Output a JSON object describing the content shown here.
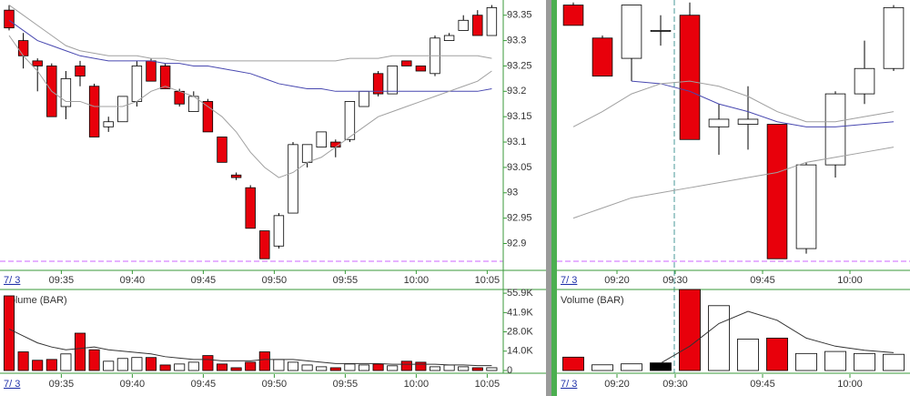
{
  "chart_data": [
    {
      "type": "candlestick",
      "date_label": "7/ 3",
      "up_color": "#ffffff",
      "down_color": "#e8000b",
      "x": [
        "09:31",
        "09:32",
        "09:33",
        "09:34",
        "09:35",
        "09:36",
        "09:37",
        "09:38",
        "09:39",
        "09:40",
        "09:41",
        "09:42",
        "09:43",
        "09:44",
        "09:45",
        "09:46",
        "09:47",
        "09:48",
        "09:49",
        "09:50",
        "09:51",
        "09:52",
        "09:53",
        "09:54",
        "09:55",
        "09:56",
        "09:57",
        "09:58",
        "09:59",
        "10:00",
        "10:01",
        "10:02",
        "10:03",
        "10:04",
        "10:05"
      ],
      "xticks": [
        "09:35",
        "09:40",
        "09:45",
        "09:50",
        "09:55",
        "10:00",
        "10:05"
      ],
      "open": [
        93.36,
        93.3,
        93.26,
        93.25,
        93.17,
        93.25,
        93.21,
        93.13,
        93.14,
        93.18,
        93.26,
        93.25,
        93.2,
        93.16,
        93.18,
        93.11,
        93.035,
        93.01,
        92.925,
        92.895,
        92.96,
        93.06,
        93.09,
        93.1,
        93.105,
        93.17,
        93.235,
        93.195,
        93.26,
        93.25,
        93.235,
        93.3,
        93.32,
        93.35,
        93.31
      ],
      "high": [
        93.37,
        93.315,
        93.265,
        93.255,
        93.24,
        93.26,
        93.215,
        93.15,
        93.19,
        93.26,
        93.265,
        93.255,
        93.205,
        93.2,
        93.185,
        93.11,
        93.04,
        93.015,
        92.925,
        92.96,
        93.1,
        93.095,
        93.12,
        93.105,
        93.18,
        93.2,
        93.24,
        93.25,
        93.26,
        93.25,
        93.31,
        93.315,
        93.35,
        93.36,
        93.37
      ],
      "low": [
        93.32,
        93.245,
        93.2,
        93.15,
        93.145,
        93.21,
        93.11,
        93.12,
        93.14,
        93.17,
        93.22,
        93.205,
        93.17,
        93.16,
        93.12,
        93.06,
        93.025,
        92.93,
        92.87,
        92.89,
        92.96,
        93.05,
        93.09,
        93.07,
        93.1,
        93.17,
        93.19,
        93.195,
        93.25,
        93.24,
        93.23,
        93.3,
        93.32,
        93.31,
        93.31
      ],
      "close": [
        93.325,
        93.27,
        93.25,
        93.15,
        93.225,
        93.23,
        93.11,
        93.14,
        93.19,
        93.25,
        93.22,
        93.205,
        93.175,
        93.19,
        93.12,
        93.06,
        93.03,
        92.93,
        92.87,
        92.955,
        93.095,
        93.095,
        93.12,
        93.09,
        93.18,
        93.2,
        93.195,
        93.25,
        93.25,
        93.24,
        93.305,
        93.31,
        93.34,
        93.31,
        93.365
      ],
      "lines": [
        {
          "color": "#4848b0",
          "values": [
            93.34,
            93.32,
            93.3,
            93.29,
            93.28,
            93.27,
            93.265,
            93.26,
            93.26,
            93.26,
            93.26,
            93.255,
            93.255,
            93.25,
            93.25,
            93.245,
            93.24,
            93.235,
            93.225,
            93.215,
            93.21,
            93.205,
            93.205,
            93.2,
            93.2,
            93.2,
            93.2,
            93.2,
            93.2,
            93.2,
            93.2,
            93.2,
            93.2,
            93.2,
            93.205
          ]
        },
        {
          "color": "#a0a0a0",
          "values": [
            93.37,
            93.35,
            93.33,
            93.31,
            93.29,
            93.28,
            93.275,
            93.27,
            93.27,
            93.27,
            93.265,
            93.265,
            93.26,
            93.26,
            93.26,
            93.26,
            93.26,
            93.26,
            93.26,
            93.26,
            93.26,
            93.26,
            93.26,
            93.26,
            93.265,
            93.265,
            93.265,
            93.27,
            93.27,
            93.27,
            93.27,
            93.27,
            93.27,
            93.27,
            93.265
          ]
        },
        {
          "color": "#a0a0a0",
          "values": [
            93.31,
            93.27,
            93.24,
            93.2,
            93.18,
            93.18,
            93.17,
            93.17,
            93.17,
            93.18,
            93.2,
            93.21,
            93.2,
            93.19,
            93.17,
            93.15,
            93.12,
            93.08,
            93.05,
            93.03,
            93.04,
            93.06,
            93.07,
            93.09,
            93.11,
            93.13,
            93.15,
            93.16,
            93.17,
            93.18,
            93.19,
            93.2,
            93.21,
            93.22,
            93.24
          ]
        }
      ],
      "ylim": [
        92.865,
        93.38
      ],
      "yticks": [
        92.9,
        92.95,
        93,
        93.05,
        93.1,
        93.15,
        93.2,
        93.25,
        93.3,
        93.35
      ]
    },
    {
      "type": "volume",
      "label": "Volume (BAR)",
      "date_label": "7/ 3",
      "xticks": [
        "09:35",
        "09:40",
        "09:45",
        "09:50",
        "09:55",
        "10:00",
        "10:05"
      ],
      "values": [
        54000,
        13500,
        7400,
        8000,
        12000,
        27000,
        15000,
        6700,
        8700,
        9400,
        9400,
        4000,
        4700,
        6000,
        10800,
        4700,
        2000,
        6000,
        13500,
        8000,
        6000,
        4000,
        2700,
        2000,
        4700,
        4000,
        4700,
        3400,
        6700,
        6000,
        2700,
        4000,
        2700,
        2000,
        2000
      ],
      "colors": [
        "#e8000b",
        "#e8000b",
        "#e8000b",
        "#e8000b",
        "#ffffff",
        "#e8000b",
        "#e8000b",
        "#ffffff",
        "#ffffff",
        "#ffffff",
        "#e8000b",
        "#e8000b",
        "#ffffff",
        "#ffffff",
        "#e8000b",
        "#e8000b",
        "#e8000b",
        "#e8000b",
        "#e8000b",
        "#ffffff",
        "#ffffff",
        "#ffffff",
        "#ffffff",
        "#e8000b",
        "#ffffff",
        "#ffffff",
        "#e8000b",
        "#ffffff",
        "#e8000b",
        "#e8000b",
        "#ffffff",
        "#ffffff",
        "#ffffff",
        "#e8000b",
        "#ffffff"
      ],
      "lines": [
        {
          "color": "#333333",
          "values": [
            30000,
            25000,
            20000,
            17000,
            15000,
            16000,
            17000,
            15000,
            14000,
            13000,
            12000,
            10000,
            9000,
            8000,
            8000,
            7000,
            7000,
            7000,
            8000,
            8000,
            8000,
            7000,
            6000,
            5000,
            5000,
            5000,
            5000,
            4500,
            4500,
            4500,
            4500,
            4000,
            4000,
            3500,
            3500
          ]
        }
      ],
      "ylim": [
        0,
        58600
      ],
      "yticks": [
        0,
        {
          "value": 14000,
          "label": "14.0K"
        },
        {
          "value": 28000,
          "label": "28.0K"
        },
        {
          "value": 41900,
          "label": "41.9K"
        },
        {
          "value": 55900,
          "label": "55.9K"
        }
      ]
    },
    {
      "type": "candlestick",
      "date_label": "7/ 3",
      "up_color": "#ffffff",
      "down_color": "#e8000b",
      "x": [
        "09:10",
        "09:15",
        "09:20",
        "09:25",
        "09:30",
        "09:35",
        "09:40",
        "09:45",
        "09:50",
        "09:55",
        "10:00",
        "10:05"
      ],
      "xticks": [
        "09:20",
        "09:30",
        "09:45",
        "10:00"
      ],
      "open": [
        93.37,
        93.305,
        93.265,
        93.32,
        93.35,
        93.13,
        93.135,
        93.135,
        92.89,
        93.055,
        93.195,
        93.245
      ],
      "high": [
        93.375,
        93.31,
        93.37,
        93.35,
        93.375,
        93.175,
        93.21,
        93.135,
        93.06,
        93.2,
        93.3,
        93.37
      ],
      "low": [
        93.33,
        93.23,
        93.22,
        93.29,
        93.105,
        93.075,
        93.085,
        92.87,
        92.88,
        93.03,
        93.175,
        93.24
      ],
      "close": [
        93.33,
        93.23,
        93.37,
        93.32,
        93.105,
        93.145,
        93.145,
        92.87,
        93.055,
        93.195,
        93.245,
        93.365
      ],
      "lines": [
        {
          "color": "#4848b0",
          "values": [
            null,
            null,
            93.22,
            93.215,
            93.2,
            93.175,
            93.16,
            93.14,
            93.13,
            93.13,
            93.135,
            93.14
          ]
        },
        {
          "color": "#a0a0a0",
          "values": [
            93.13,
            93.16,
            93.195,
            93.215,
            93.22,
            93.21,
            93.19,
            93.16,
            93.14,
            93.14,
            93.15,
            93.16
          ]
        },
        {
          "color": "#a0a0a0",
          "values": [
            92.95,
            92.97,
            92.99,
            93.0,
            93.01,
            93.02,
            93.03,
            93.04,
            93.06,
            93.07,
            93.08,
            93.09
          ]
        }
      ],
      "ylim": [
        92.865,
        93.38
      ]
    },
    {
      "type": "volume",
      "label": "Volume (BAR)",
      "date_label": "7/ 3",
      "xticks": [
        "09:20",
        "09:30",
        "09:45",
        "10:00"
      ],
      "values": [
        16500,
        7000,
        8200,
        9400,
        100000,
        80000,
        38800,
        40000,
        21000,
        23500,
        21000,
        20000
      ],
      "colors": [
        "#e8000b",
        "#ffffff",
        "#ffffff",
        "#000000",
        "#e8000b",
        "#ffffff",
        "#ffffff",
        "#e8000b",
        "#ffffff",
        "#ffffff",
        "#ffffff",
        "#ffffff"
      ],
      "lines": [
        {
          "color": "#333333",
          "values": [
            null,
            null,
            null,
            9000,
            30000,
            58000,
            73000,
            62000,
            40000,
            30000,
            25000,
            22000
          ]
        }
      ],
      "ylim": [
        0,
        100000
      ]
    }
  ]
}
